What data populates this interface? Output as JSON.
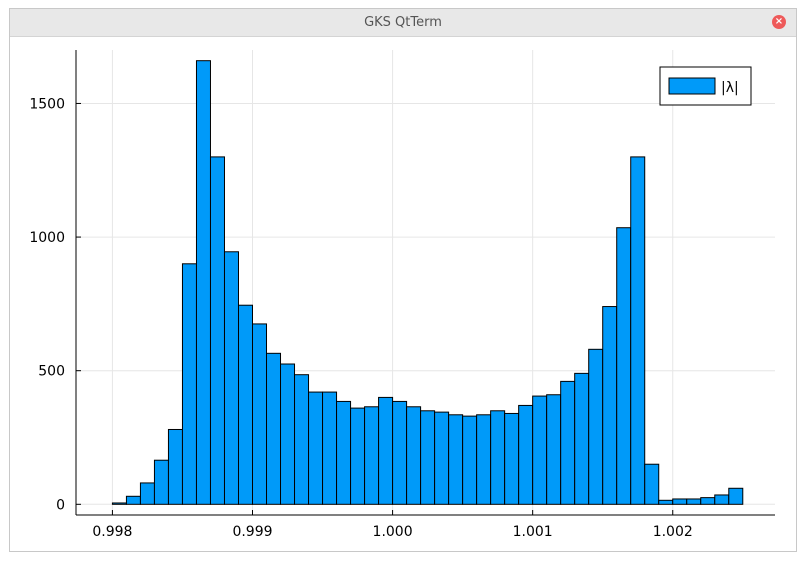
{
  "window": {
    "title": "GKS QtTerm",
    "close_icon": "close-icon"
  },
  "chart_data": {
    "type": "bar",
    "title": "",
    "xlabel": "",
    "ylabel": "",
    "x_range": [
      0.998,
      0.9985
    ],
    "bin_width": 0.0001,
    "xlim": [
      0.99774,
      1.00273
    ],
    "ylim": [
      -40,
      1700
    ],
    "xticks": [
      "0.998",
      "0.999",
      "1.000",
      "1.001",
      "1.002"
    ],
    "yticks": [
      "0",
      "500",
      "1000",
      "1500"
    ],
    "grid": true,
    "legend_position": "top-right",
    "bar_color": "#009af9",
    "series": [
      {
        "name": "|λ|",
        "bin_edges_start": 0.998,
        "values": [
          5,
          30,
          80,
          165,
          280,
          900,
          1660,
          1300,
          945,
          745,
          675,
          565,
          525,
          485,
          420,
          420,
          385,
          360,
          365,
          400,
          385,
          365,
          350,
          345,
          335,
          330,
          335,
          350,
          340,
          370,
          405,
          410,
          460,
          490,
          580,
          740,
          1035,
          1300,
          150,
          15,
          20,
          20,
          25,
          35,
          60
        ]
      }
    ]
  }
}
